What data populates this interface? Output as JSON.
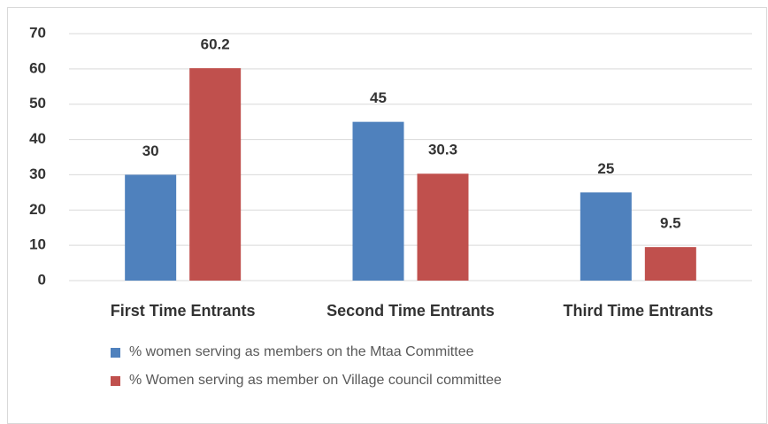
{
  "chart_data": {
    "type": "bar",
    "categories": [
      "First Time Entrants",
      "Second Time Entrants",
      "Third Time Entrants"
    ],
    "series": [
      {
        "name": "% women serving as members on the Mtaa Committee",
        "color": "#4f81bd",
        "values": [
          30,
          45,
          25
        ]
      },
      {
        "name": "% Women serving as member on Village council committee",
        "color": "#c0504d",
        "values": [
          60.2,
          30.3,
          9.5
        ]
      }
    ],
    "ylim": [
      0,
      70
    ],
    "yticks": [
      0,
      10,
      20,
      30,
      40,
      50,
      60,
      70
    ],
    "grid": true,
    "legend": "bottom"
  }
}
